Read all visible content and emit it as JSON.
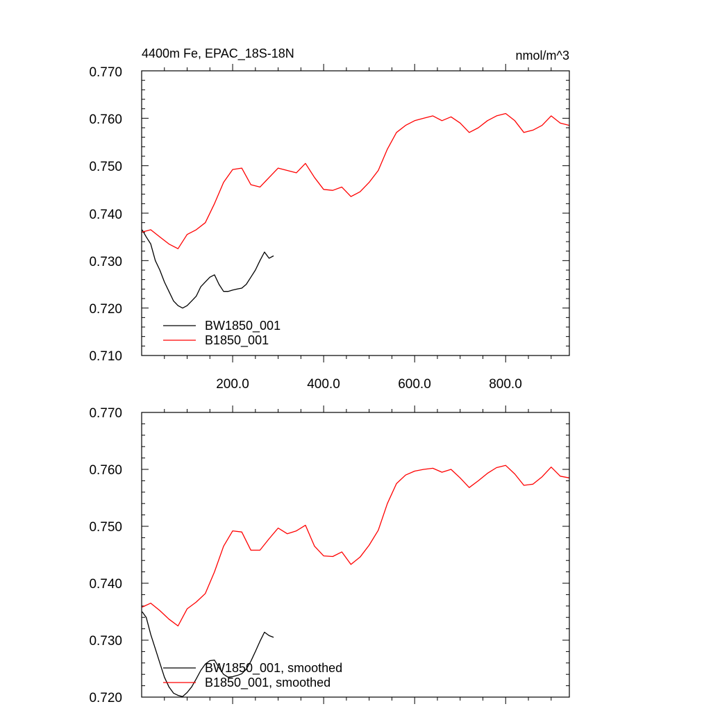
{
  "chart_data": [
    {
      "type": "line",
      "title": "4400m Fe, EPAC_18S-18N",
      "units": "nmol/m^3",
      "xlim": [
        0,
        940
      ],
      "ylim": [
        0.71,
        0.77
      ],
      "x_ticks": [
        "200.0",
        "400.0",
        "600.0",
        "800.0"
      ],
      "y_ticks": [
        "0.770",
        "0.760",
        "0.750",
        "0.740",
        "0.730",
        "0.720",
        "0.710"
      ],
      "grid": false,
      "legend_position": "bottom-left",
      "series": [
        {
          "name": "BW1850_001",
          "color": "#000000",
          "x": [
            1,
            10,
            20,
            30,
            40,
            50,
            60,
            70,
            80,
            90,
            100,
            110,
            120,
            130,
            140,
            150,
            160,
            170,
            180,
            190,
            200,
            210,
            220,
            230,
            240,
            250,
            260,
            270,
            280,
            290
          ],
          "y": [
            0.7365,
            0.735,
            0.7335,
            0.73,
            0.728,
            0.7255,
            0.7235,
            0.7215,
            0.7205,
            0.72,
            0.7205,
            0.7215,
            0.7225,
            0.7245,
            0.7255,
            0.7265,
            0.727,
            0.725,
            0.7235,
            0.7235,
            0.7238,
            0.724,
            0.7242,
            0.725,
            0.7265,
            0.728,
            0.73,
            0.7318,
            0.7305,
            0.731
          ]
        },
        {
          "name": "B1850_001",
          "color": "#ff0000",
          "x": [
            1,
            20,
            40,
            60,
            80,
            100,
            120,
            140,
            160,
            180,
            200,
            220,
            240,
            260,
            280,
            300,
            320,
            340,
            360,
            380,
            400,
            420,
            440,
            460,
            480,
            500,
            520,
            540,
            560,
            580,
            600,
            620,
            640,
            660,
            680,
            700,
            720,
            740,
            760,
            780,
            800,
            820,
            840,
            860,
            880,
            900,
            920,
            940
          ],
          "y": [
            0.736,
            0.7365,
            0.735,
            0.7335,
            0.7325,
            0.7355,
            0.7365,
            0.738,
            0.742,
            0.7465,
            0.7492,
            0.7495,
            0.746,
            0.7455,
            0.7475,
            0.7495,
            0.749,
            0.7485,
            0.7505,
            0.7475,
            0.745,
            0.7448,
            0.7455,
            0.7435,
            0.7445,
            0.7465,
            0.749,
            0.7535,
            0.757,
            0.7585,
            0.7595,
            0.76,
            0.7605,
            0.7595,
            0.7603,
            0.759,
            0.757,
            0.758,
            0.7595,
            0.7605,
            0.761,
            0.7595,
            0.757,
            0.7575,
            0.7585,
            0.7605,
            0.759,
            0.7585
          ]
        }
      ]
    },
    {
      "type": "line",
      "xlim": [
        0,
        940
      ],
      "ylim": [
        0.72,
        0.77
      ],
      "y_ticks": [
        "0.770",
        "0.760",
        "0.750",
        "0.740",
        "0.730",
        "0.720"
      ],
      "grid": false,
      "legend_position": "bottom-left",
      "series": [
        {
          "name": "BW1850_001, smoothed",
          "color": "#000000",
          "x": [
            1,
            10,
            20,
            30,
            40,
            50,
            60,
            70,
            80,
            90,
            100,
            110,
            120,
            130,
            140,
            150,
            160,
            170,
            180,
            190,
            200,
            210,
            220,
            230,
            240,
            250,
            260,
            270,
            280,
            290
          ],
          "y": [
            0.735,
            0.734,
            0.731,
            0.7285,
            0.726,
            0.7235,
            0.7218,
            0.7207,
            0.7203,
            0.7201,
            0.7208,
            0.7218,
            0.7232,
            0.7247,
            0.7258,
            0.7264,
            0.7265,
            0.7252,
            0.724,
            0.7235,
            0.7236,
            0.7238,
            0.7241,
            0.7249,
            0.7263,
            0.728,
            0.7298,
            0.7314,
            0.7308,
            0.7305
          ]
        },
        {
          "name": "B1850_001, smoothed",
          "color": "#ff0000",
          "x": [
            1,
            20,
            40,
            60,
            80,
            100,
            120,
            140,
            160,
            180,
            200,
            220,
            240,
            260,
            280,
            300,
            320,
            340,
            360,
            380,
            400,
            420,
            440,
            460,
            480,
            500,
            520,
            540,
            560,
            580,
            600,
            620,
            640,
            660,
            680,
            700,
            720,
            740,
            760,
            780,
            800,
            820,
            840,
            860,
            880,
            900,
            920,
            940
          ],
          "y": [
            0.7358,
            0.7365,
            0.7352,
            0.7337,
            0.7325,
            0.7355,
            0.7367,
            0.7382,
            0.742,
            0.7465,
            0.7492,
            0.749,
            0.7458,
            0.7458,
            0.7478,
            0.7497,
            0.7487,
            0.7492,
            0.7502,
            0.7465,
            0.7448,
            0.7447,
            0.7455,
            0.7433,
            0.7446,
            0.7467,
            0.7493,
            0.754,
            0.7575,
            0.759,
            0.7597,
            0.76,
            0.7602,
            0.7595,
            0.76,
            0.7585,
            0.7568,
            0.758,
            0.7593,
            0.7603,
            0.7607,
            0.7592,
            0.7572,
            0.7574,
            0.7587,
            0.7604,
            0.7588,
            0.7585
          ]
        }
      ]
    }
  ]
}
